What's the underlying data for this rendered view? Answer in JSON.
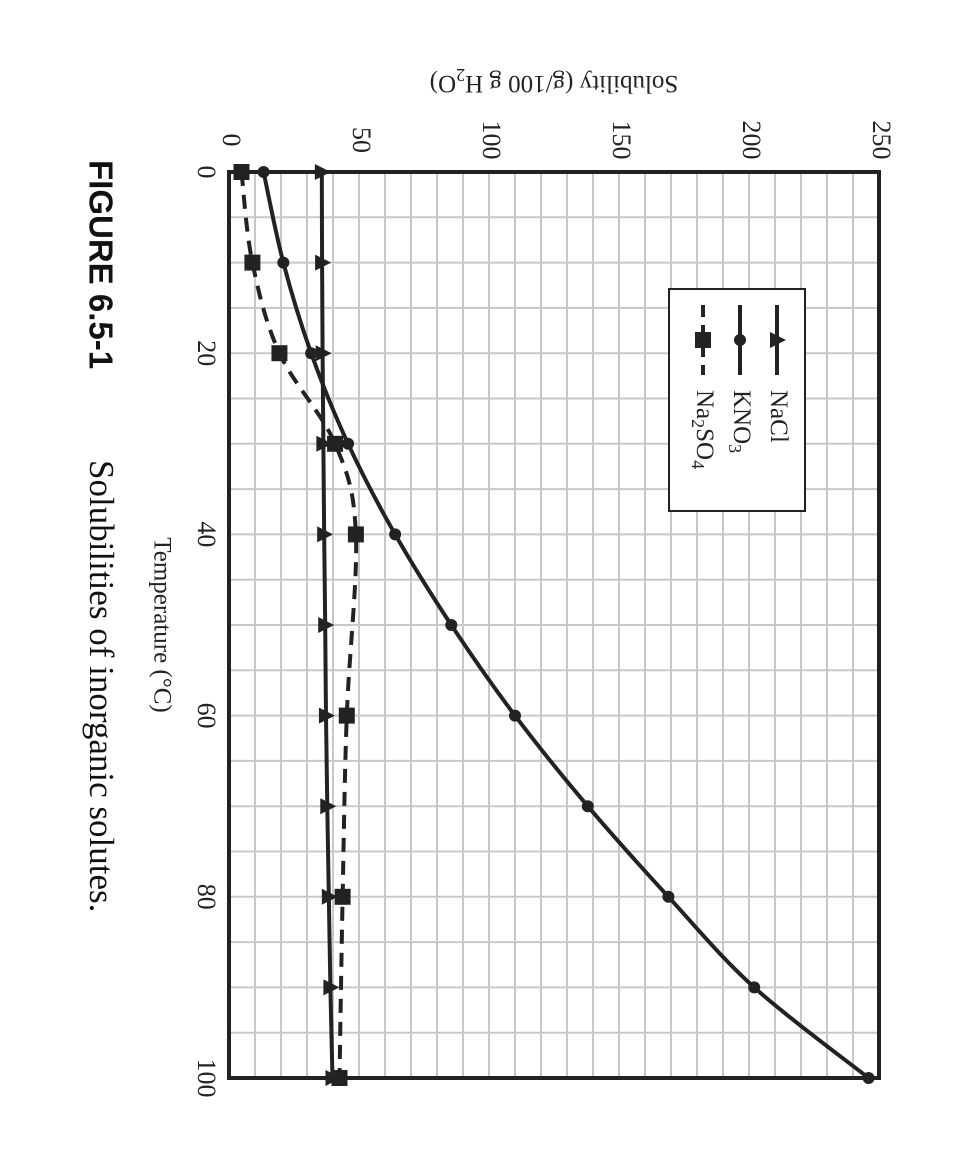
{
  "figure": {
    "label": "FIGURE 6.5-1",
    "caption": "Solubilities of inorganic solutes."
  },
  "chart_data": {
    "type": "line",
    "orientation": "rotated 90° clockwise (temperature axis runs down the page)",
    "xlabel": "Temperature (°C)",
    "ylabel_parts": [
      "Solubility (g/100 g H",
      "2",
      "O)"
    ],
    "xlim": [
      0,
      100
    ],
    "ylim": [
      0,
      250
    ],
    "xticks": [
      "0",
      "20",
      "40",
      "60",
      "80",
      "100"
    ],
    "yticks": [
      "0",
      "50",
      "100",
      "150",
      "200",
      "250"
    ],
    "grid": true,
    "legend_position": "top-left",
    "series": [
      {
        "name": "NaCl",
        "legend_parts": [
          "NaCl"
        ],
        "marker": "triangle",
        "line": "solid",
        "x": [
          0,
          10,
          20,
          30,
          40,
          50,
          60,
          70,
          80,
          90,
          100
        ],
        "y": [
          35.7,
          35.8,
          36.0,
          36.3,
          36.6,
          37.0,
          37.3,
          37.8,
          38.4,
          39.0,
          39.8
        ]
      },
      {
        "name": "KNO3",
        "legend_parts": [
          "KNO",
          "3"
        ],
        "marker": "circle",
        "line": "solid",
        "x": [
          0,
          10,
          20,
          30,
          40,
          50,
          60,
          70,
          80,
          90,
          100
        ],
        "y": [
          13.3,
          20.9,
          31.6,
          45.8,
          63.9,
          85.5,
          110.0,
          138.0,
          169.0,
          202.0,
          246.0
        ]
      },
      {
        "name": "Na2SO4",
        "legend_parts": [
          "Na",
          "2",
          "SO",
          "4"
        ],
        "marker": "square",
        "line": "dashed",
        "x": [
          0,
          10,
          20,
          30,
          40,
          60,
          80,
          100
        ],
        "y": [
          4.8,
          9.0,
          19.4,
          40.8,
          48.8,
          45.3,
          43.7,
          42.5
        ]
      }
    ],
    "colors": {
      "line": "#222222",
      "grid": "#c8c8c8",
      "frame": "#222222"
    }
  }
}
